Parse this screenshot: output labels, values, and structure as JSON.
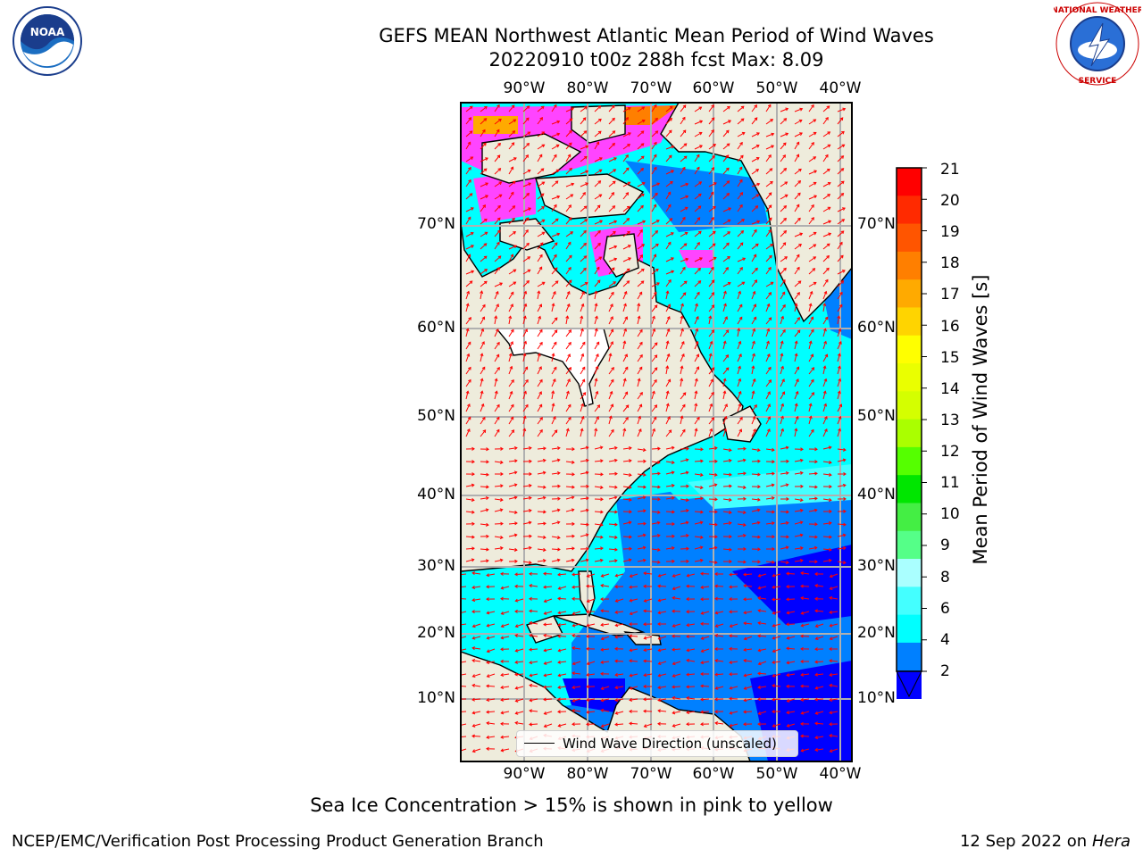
{
  "header": {
    "title_line1": "GEFS MEAN Northwest Atlantic Mean Period of Wind Waves",
    "title_line2": "20220910 t00z 288h fcst   Max: 8.09"
  },
  "logos": {
    "left": "NOAA",
    "right": "NATIONAL WEATHER SERVICE"
  },
  "map": {
    "lon_ticks": [
      "90°W",
      "80°W",
      "70°W",
      "60°W",
      "50°W",
      "40°W"
    ],
    "lat_ticks": [
      "70°N",
      "60°N",
      "50°N",
      "40°N",
      "30°N",
      "20°N",
      "10°N"
    ],
    "colors": {
      "land": "#eeecdc",
      "ocean": "#00ffff",
      "grid": "#b0b0b0",
      "arrows": "#ff0000",
      "ice": "#ff44ff"
    },
    "legend_label": "Wind Wave Direction (unscaled)"
  },
  "colorbar": {
    "title": "Mean Period of Wind Waves [s]",
    "tick_labels": [
      "21",
      "20",
      "19",
      "18",
      "17",
      "16",
      "15",
      "14",
      "13",
      "12",
      "11",
      "10",
      "9",
      "8",
      "6",
      "4",
      "2"
    ],
    "colors_top_to_bottom": [
      "#ff0000",
      "#ff2a00",
      "#ff5500",
      "#ff7f00",
      "#ffaa00",
      "#ffd400",
      "#ffff00",
      "#eaff00",
      "#d4ff00",
      "#aaff00",
      "#55ff00",
      "#00e600",
      "#44ee44",
      "#55ff88",
      "#aaffff",
      "#44ffff",
      "#00ffff",
      "#0080ff",
      "#0000ff"
    ]
  },
  "caption": "Sea Ice Concentration > 15% is shown in pink to yellow",
  "footer": {
    "left": "NCEP/EMC/Verification Post Processing Product Generation Branch",
    "right_date": "12 Sep 2022 on",
    "right_host": "Hera"
  }
}
